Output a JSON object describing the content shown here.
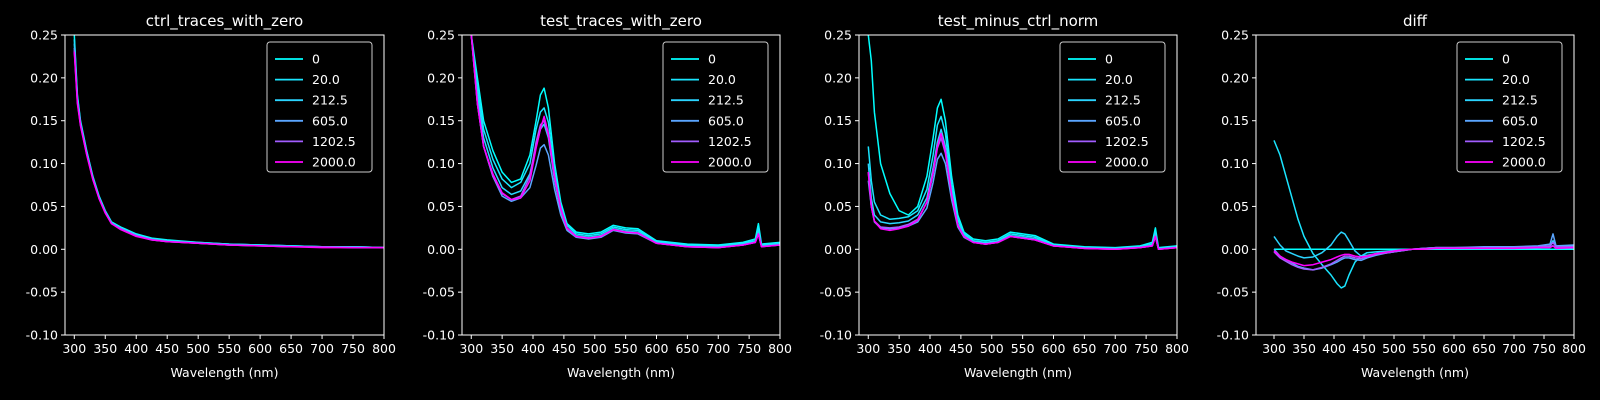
{
  "figure": {
    "background": "#000000",
    "foreground": "#ffffff"
  },
  "legend": {
    "entries": [
      "0",
      "20.0",
      "212.5",
      "605.0",
      "1202.5",
      "2000.0"
    ],
    "colors": [
      "#00ffff",
      "#1ae5ff",
      "#2bd4ff",
      "#5aa5ff",
      "#a25dff",
      "#ff00ff"
    ]
  },
  "chart_data": [
    {
      "type": "line",
      "title": "ctrl_traces_with_zero",
      "xlabel": "Wavelength (nm)",
      "ylabel": "",
      "xlim": [
        285,
        800
      ],
      "ylim": [
        -0.1,
        0.25
      ],
      "xticks": [
        300,
        350,
        400,
        450,
        500,
        550,
        600,
        650,
        700,
        750,
        800
      ],
      "yticks": [
        "-0.10",
        "-0.05",
        "0.00",
        "0.05",
        "0.10",
        "0.15",
        "0.20",
        "0.25"
      ],
      "legend_position": "upper-right",
      "grid": false,
      "x": [
        300,
        305,
        310,
        320,
        330,
        340,
        350,
        360,
        375,
        400,
        425,
        450,
        500,
        550,
        600,
        650,
        700,
        750,
        800
      ],
      "series": [
        {
          "name": "0",
          "values": [
            0.25,
            0.18,
            0.15,
            0.115,
            0.085,
            0.062,
            0.045,
            0.032,
            0.026,
            0.018,
            0.013,
            0.011,
            0.008,
            0.006,
            0.005,
            0.004,
            0.003,
            0.003,
            0.002
          ]
        },
        {
          "name": "20.0",
          "values": [
            0.245,
            0.178,
            0.148,
            0.114,
            0.084,
            0.061,
            0.044,
            0.031,
            0.025,
            0.017,
            0.012,
            0.01,
            0.008,
            0.006,
            0.005,
            0.004,
            0.003,
            0.003,
            0.002
          ]
        },
        {
          "name": "212.5",
          "values": [
            0.24,
            0.176,
            0.147,
            0.113,
            0.083,
            0.06,
            0.044,
            0.031,
            0.024,
            0.016,
            0.012,
            0.01,
            0.007,
            0.006,
            0.005,
            0.004,
            0.003,
            0.003,
            0.002
          ]
        },
        {
          "name": "605.0",
          "values": [
            0.235,
            0.174,
            0.146,
            0.112,
            0.082,
            0.06,
            0.043,
            0.03,
            0.024,
            0.016,
            0.011,
            0.009,
            0.007,
            0.005,
            0.004,
            0.003,
            0.003,
            0.002,
            0.002
          ]
        },
        {
          "name": "1202.5",
          "values": [
            0.232,
            0.172,
            0.145,
            0.111,
            0.082,
            0.059,
            0.043,
            0.03,
            0.024,
            0.016,
            0.011,
            0.009,
            0.007,
            0.005,
            0.004,
            0.003,
            0.003,
            0.002,
            0.002
          ]
        },
        {
          "name": "2000.0",
          "values": [
            0.23,
            0.17,
            0.144,
            0.11,
            0.081,
            0.059,
            0.042,
            0.03,
            0.023,
            0.015,
            0.011,
            0.009,
            0.007,
            0.005,
            0.004,
            0.003,
            0.002,
            0.002,
            0.002
          ]
        }
      ]
    },
    {
      "type": "line",
      "title": "test_traces_with_zero",
      "xlabel": "Wavelength (nm)",
      "ylabel": "",
      "xlim": [
        285,
        800
      ],
      "ylim": [
        -0.1,
        0.25
      ],
      "xticks": [
        300,
        350,
        400,
        450,
        500,
        550,
        600,
        650,
        700,
        750,
        800
      ],
      "yticks": [
        "-0.10",
        "-0.05",
        "0.00",
        "0.05",
        "0.10",
        "0.15",
        "0.20",
        "0.25"
      ],
      "legend_position": "upper-right",
      "grid": false,
      "x": [
        300,
        310,
        320,
        335,
        350,
        365,
        380,
        395,
        405,
        412,
        418,
        425,
        435,
        445,
        455,
        470,
        490,
        510,
        530,
        550,
        570,
        600,
        650,
        700,
        740,
        760,
        765,
        770,
        800
      ],
      "series": [
        {
          "name": "0",
          "values": [
            0.25,
            0.2,
            0.15,
            0.115,
            0.09,
            0.078,
            0.082,
            0.11,
            0.15,
            0.18,
            0.188,
            0.165,
            0.1,
            0.055,
            0.03,
            0.02,
            0.018,
            0.02,
            0.028,
            0.025,
            0.024,
            0.01,
            0.006,
            0.005,
            0.008,
            0.012,
            0.03,
            0.006,
            0.008
          ]
        },
        {
          "name": "20.0",
          "values": [
            0.25,
            0.19,
            0.14,
            0.105,
            0.082,
            0.072,
            0.078,
            0.1,
            0.14,
            0.16,
            0.165,
            0.148,
            0.09,
            0.05,
            0.028,
            0.018,
            0.016,
            0.018,
            0.026,
            0.023,
            0.022,
            0.009,
            0.005,
            0.004,
            0.007,
            0.01,
            0.025,
            0.005,
            0.007
          ]
        },
        {
          "name": "212.5",
          "values": [
            0.25,
            0.18,
            0.13,
            0.095,
            0.072,
            0.064,
            0.068,
            0.088,
            0.12,
            0.14,
            0.146,
            0.13,
            0.08,
            0.045,
            0.025,
            0.016,
            0.014,
            0.016,
            0.024,
            0.021,
            0.02,
            0.008,
            0.004,
            0.003,
            0.006,
            0.009,
            0.02,
            0.004,
            0.006
          ]
        },
        {
          "name": "605.0",
          "values": [
            0.25,
            0.17,
            0.12,
            0.085,
            0.062,
            0.056,
            0.06,
            0.072,
            0.098,
            0.118,
            0.122,
            0.11,
            0.07,
            0.04,
            0.022,
            0.014,
            0.012,
            0.014,
            0.022,
            0.019,
            0.018,
            0.007,
            0.003,
            0.002,
            0.005,
            0.008,
            0.018,
            0.003,
            0.005
          ]
        },
        {
          "name": "1202.5",
          "values": [
            0.25,
            0.17,
            0.12,
            0.085,
            0.065,
            0.058,
            0.062,
            0.085,
            0.125,
            0.145,
            0.15,
            0.132,
            0.082,
            0.046,
            0.024,
            0.015,
            0.013,
            0.015,
            0.023,
            0.02,
            0.019,
            0.007,
            0.003,
            0.002,
            0.005,
            0.008,
            0.018,
            0.003,
            0.005
          ]
        },
        {
          "name": "2000.0",
          "values": [
            0.25,
            0.17,
            0.12,
            0.088,
            0.066,
            0.058,
            0.06,
            0.08,
            0.118,
            0.14,
            0.155,
            0.135,
            0.085,
            0.048,
            0.025,
            0.015,
            0.013,
            0.015,
            0.023,
            0.02,
            0.019,
            0.007,
            0.003,
            0.002,
            0.005,
            0.008,
            0.018,
            0.003,
            0.005
          ]
        }
      ]
    },
    {
      "type": "line",
      "title": "test_minus_ctrl_norm",
      "xlabel": "Wavelength (nm)",
      "ylabel": "",
      "xlim": [
        285,
        800
      ],
      "ylim": [
        -0.1,
        0.25
      ],
      "xticks": [
        300,
        350,
        400,
        450,
        500,
        550,
        600,
        650,
        700,
        750,
        800
      ],
      "yticks": [
        "-0.10",
        "-0.05",
        "0.00",
        "0.05",
        "0.10",
        "0.15",
        "0.20",
        "0.25"
      ],
      "legend_position": "upper-right",
      "grid": false,
      "x": [
        300,
        305,
        310,
        320,
        335,
        350,
        365,
        380,
        395,
        405,
        412,
        418,
        425,
        435,
        445,
        455,
        470,
        490,
        510,
        530,
        550,
        570,
        600,
        650,
        700,
        740,
        760,
        765,
        770,
        800
      ],
      "series": [
        {
          "name": "0",
          "values": [
            0.25,
            0.22,
            0.16,
            0.1,
            0.065,
            0.045,
            0.04,
            0.05,
            0.085,
            0.13,
            0.165,
            0.175,
            0.15,
            0.085,
            0.04,
            0.02,
            0.012,
            0.01,
            0.012,
            0.02,
            0.018,
            0.016,
            0.006,
            0.003,
            0.002,
            0.004,
            0.008,
            0.025,
            0.002,
            0.004
          ]
        },
        {
          "name": "20.0",
          "values": [
            0.12,
            0.08,
            0.055,
            0.04,
            0.035,
            0.036,
            0.038,
            0.045,
            0.07,
            0.11,
            0.145,
            0.155,
            0.135,
            0.075,
            0.035,
            0.018,
            0.01,
            0.008,
            0.01,
            0.018,
            0.016,
            0.014,
            0.005,
            0.002,
            0.001,
            0.003,
            0.006,
            0.02,
            0.001,
            0.003
          ]
        },
        {
          "name": "212.5",
          "values": [
            0.1,
            0.06,
            0.04,
            0.032,
            0.03,
            0.031,
            0.033,
            0.04,
            0.06,
            0.095,
            0.125,
            0.14,
            0.12,
            0.068,
            0.03,
            0.016,
            0.009,
            0.007,
            0.009,
            0.016,
            0.014,
            0.012,
            0.004,
            0.002,
            0.001,
            0.003,
            0.005,
            0.018,
            0.001,
            0.003
          ]
        },
        {
          "name": "605.0",
          "values": [
            0.08,
            0.05,
            0.032,
            0.025,
            0.024,
            0.025,
            0.027,
            0.032,
            0.048,
            0.078,
            0.105,
            0.112,
            0.1,
            0.058,
            0.026,
            0.014,
            0.008,
            0.006,
            0.008,
            0.015,
            0.013,
            0.011,
            0.004,
            0.001,
            0.0,
            0.002,
            0.004,
            0.015,
            0.0,
            0.002
          ]
        },
        {
          "name": "1202.5",
          "values": [
            0.09,
            0.05,
            0.033,
            0.026,
            0.025,
            0.026,
            0.029,
            0.035,
            0.055,
            0.088,
            0.118,
            0.13,
            0.112,
            0.064,
            0.028,
            0.015,
            0.008,
            0.006,
            0.008,
            0.015,
            0.013,
            0.011,
            0.004,
            0.001,
            0.0,
            0.002,
            0.004,
            0.015,
            0.0,
            0.002
          ]
        },
        {
          "name": "2000.0",
          "values": [
            0.09,
            0.05,
            0.033,
            0.024,
            0.022,
            0.024,
            0.027,
            0.034,
            0.055,
            0.09,
            0.12,
            0.135,
            0.115,
            0.065,
            0.028,
            0.015,
            0.008,
            0.006,
            0.008,
            0.015,
            0.013,
            0.011,
            0.004,
            0.001,
            0.0,
            0.002,
            0.004,
            0.015,
            0.0,
            0.002
          ]
        }
      ]
    },
    {
      "type": "line",
      "title": "diff",
      "xlabel": "Wavelength (nm)",
      "ylabel": "",
      "xlim": [
        270,
        800
      ],
      "ylim": [
        -0.1,
        0.25
      ],
      "xticks": [
        300,
        350,
        400,
        450,
        500,
        550,
        600,
        650,
        700,
        750,
        800
      ],
      "yticks": [
        "-0.10",
        "-0.05",
        "0.00",
        "0.05",
        "0.10",
        "0.15",
        "0.20",
        "0.25"
      ],
      "legend_position": "upper-right",
      "grid": false,
      "x": [
        300,
        310,
        320,
        330,
        340,
        350,
        365,
        380,
        395,
        405,
        412,
        418,
        425,
        435,
        445,
        455,
        470,
        490,
        510,
        530,
        550,
        570,
        600,
        650,
        700,
        740,
        760,
        765,
        770,
        800
      ],
      "series": [
        {
          "name": "0",
          "values": [
            0.0,
            0.0,
            0.0,
            0.0,
            0.0,
            0.0,
            0.0,
            0.0,
            0.0,
            0.0,
            0.0,
            0.0,
            0.0,
            0.0,
            0.0,
            0.0,
            0.0,
            0.0,
            0.0,
            0.0,
            0.0,
            0.0,
            0.0,
            0.0,
            0.0,
            0.0,
            0.0,
            0.0,
            0.0,
            0.0
          ]
        },
        {
          "name": "20.0",
          "values": [
            0.127,
            0.11,
            0.085,
            0.06,
            0.035,
            0.015,
            -0.005,
            -0.018,
            -0.03,
            -0.04,
            -0.045,
            -0.043,
            -0.03,
            -0.015,
            -0.008,
            -0.004,
            -0.003,
            -0.002,
            -0.001,
            0.0,
            0.0,
            0.001,
            0.001,
            0.001,
            0.001,
            0.002,
            0.003,
            0.004,
            0.002,
            0.003
          ]
        },
        {
          "name": "212.5",
          "values": [
            0.015,
            0.005,
            -0.002,
            -0.005,
            -0.008,
            -0.01,
            -0.009,
            -0.004,
            0.005,
            0.015,
            0.02,
            0.018,
            0.01,
            -0.002,
            -0.008,
            -0.007,
            -0.005,
            -0.004,
            -0.002,
            0.0,
            0.001,
            0.002,
            0.002,
            0.002,
            0.002,
            0.003,
            0.004,
            0.01,
            0.003,
            0.004
          ]
        },
        {
          "name": "605.0",
          "values": [
            0.0,
            -0.008,
            -0.012,
            -0.016,
            -0.02,
            -0.022,
            -0.024,
            -0.022,
            -0.018,
            -0.015,
            -0.012,
            -0.01,
            -0.01,
            -0.012,
            -0.013,
            -0.01,
            -0.007,
            -0.004,
            -0.002,
            0.0,
            0.001,
            0.002,
            0.002,
            0.003,
            0.003,
            0.004,
            0.006,
            0.018,
            0.004,
            0.005
          ]
        },
        {
          "name": "1202.5",
          "values": [
            -0.003,
            -0.01,
            -0.014,
            -0.018,
            -0.021,
            -0.023,
            -0.024,
            -0.021,
            -0.017,
            -0.013,
            -0.01,
            -0.008,
            -0.008,
            -0.01,
            -0.011,
            -0.009,
            -0.006,
            -0.004,
            -0.002,
            0.0,
            0.001,
            0.002,
            0.002,
            0.002,
            0.002,
            0.003,
            0.004,
            0.008,
            0.003,
            0.003
          ]
        },
        {
          "name": "2000.0",
          "values": [
            -0.002,
            -0.008,
            -0.012,
            -0.015,
            -0.017,
            -0.019,
            -0.018,
            -0.015,
            -0.012,
            -0.009,
            -0.007,
            -0.006,
            -0.006,
            -0.008,
            -0.009,
            -0.008,
            -0.005,
            -0.003,
            -0.001,
            0.0,
            0.0,
            0.001,
            0.001,
            0.001,
            0.001,
            0.002,
            0.002,
            0.004,
            0.001,
            0.002
          ]
        }
      ]
    }
  ]
}
